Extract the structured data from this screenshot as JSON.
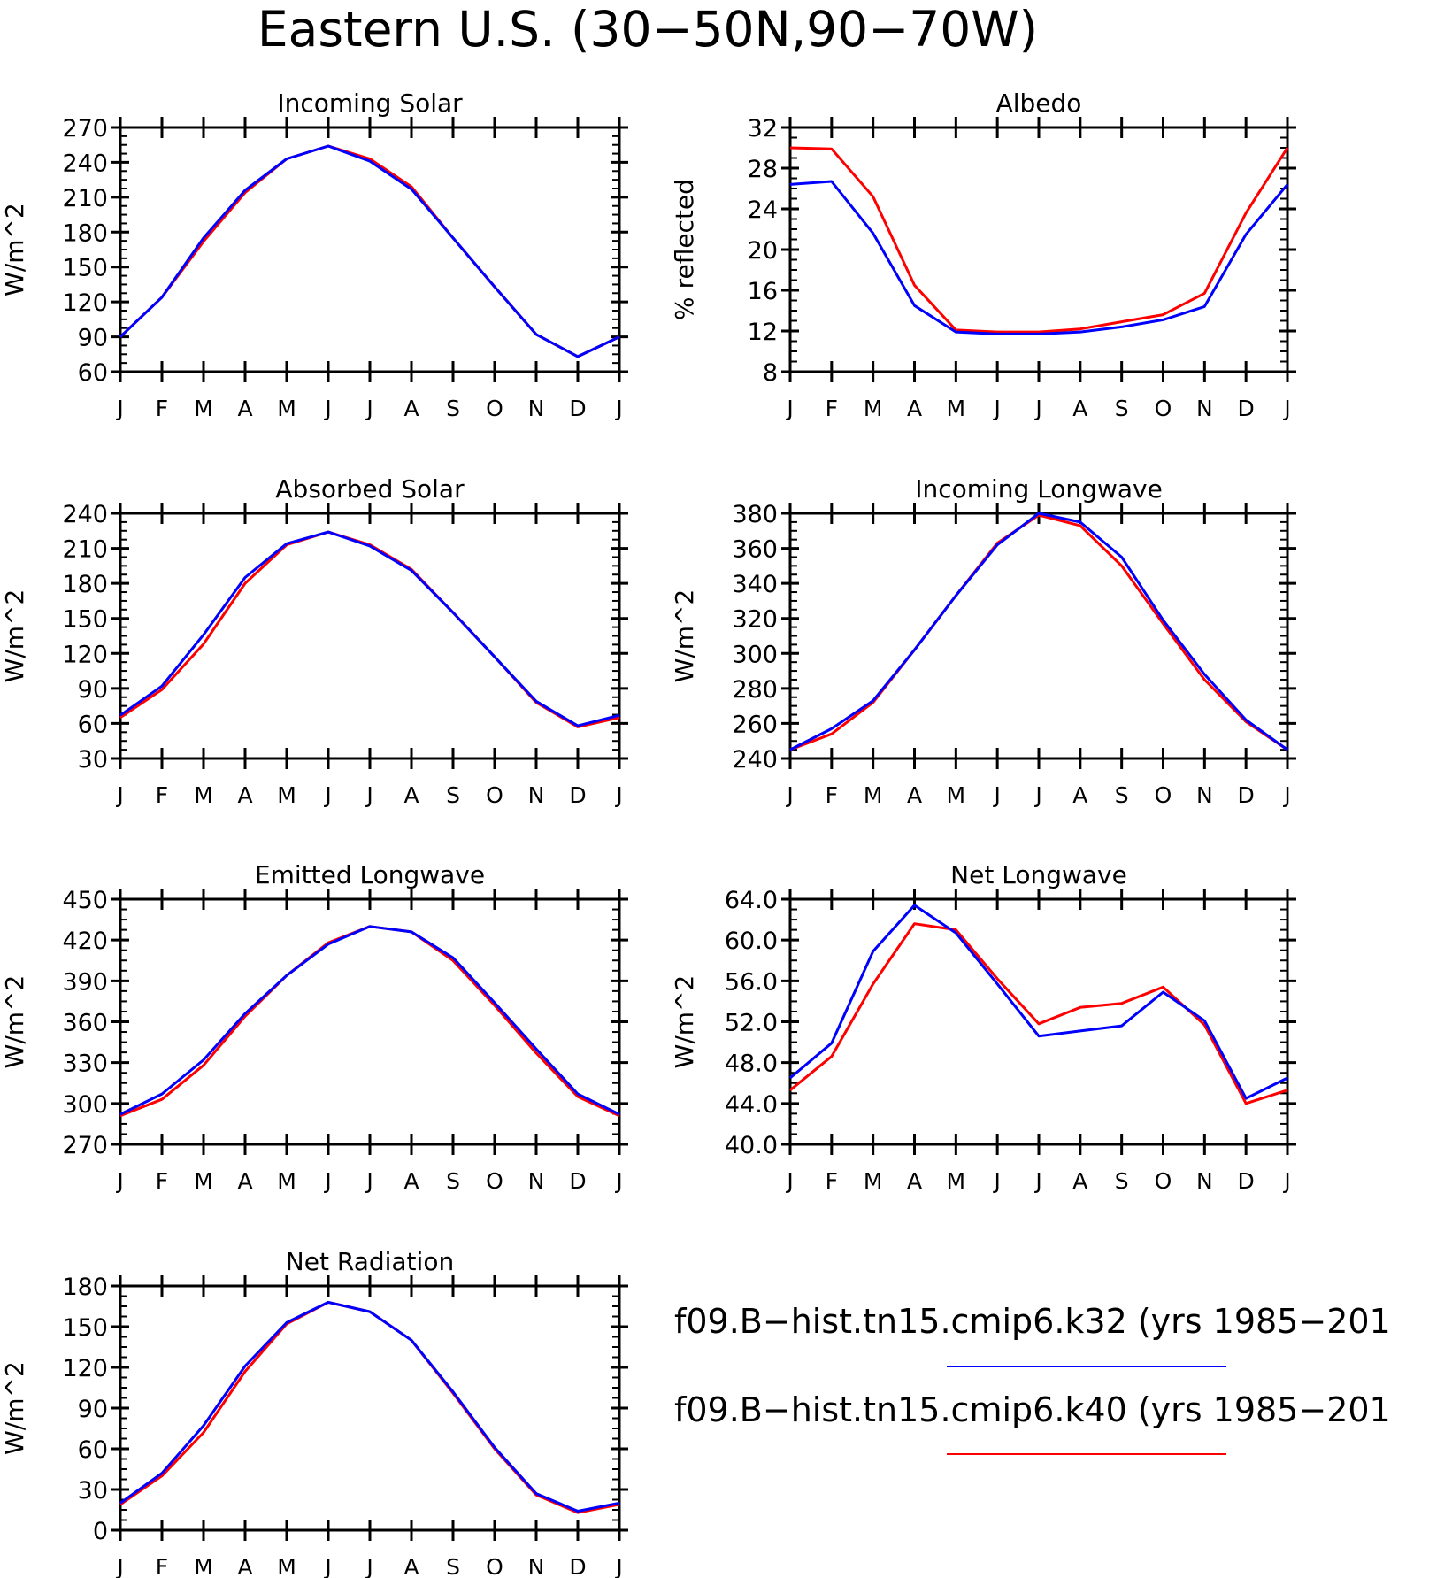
{
  "figure": {
    "title": "Eastern U.S. (30−50N,90−70W)"
  },
  "legend": {
    "entries": [
      {
        "label": "f09.B−hist.tn15.cmip6.k32 (yrs 1985−201",
        "color": "#0000ff"
      },
      {
        "label": "f09.B−hist.tn15.cmip6.k40 (yrs 1985−201",
        "color": "#ff0000"
      }
    ]
  },
  "chart_data": [
    {
      "type": "line",
      "title": "Incoming Solar",
      "ylabel": "W/m^2",
      "categories": [
        "J",
        "F",
        "M",
        "A",
        "M",
        "J",
        "J",
        "A",
        "S",
        "O",
        "N",
        "D",
        "J"
      ],
      "ylim": [
        60,
        270
      ],
      "yticks": [
        "60",
        "90",
        "120",
        "150",
        "180",
        "210",
        "240",
        "270"
      ],
      "series": [
        {
          "color": "#ff0000",
          "values": [
            90,
            124,
            172,
            214,
            243,
            254,
            243,
            219,
            175,
            133,
            92,
            73,
            90
          ]
        },
        {
          "color": "#0000ff",
          "values": [
            90,
            124,
            175,
            216,
            243,
            254,
            241,
            217,
            175,
            133,
            92,
            73,
            90
          ]
        }
      ]
    },
    {
      "type": "line",
      "title": "Albedo",
      "ylabel": "% reflected",
      "categories": [
        "J",
        "F",
        "M",
        "A",
        "M",
        "J",
        "J",
        "A",
        "S",
        "O",
        "N",
        "D",
        "J"
      ],
      "ylim": [
        8,
        32
      ],
      "yticks": [
        "8",
        "12",
        "16",
        "20",
        "24",
        "28",
        "32"
      ],
      "series": [
        {
          "color": "#ff0000",
          "values": [
            30.0,
            29.9,
            25.2,
            16.5,
            12.1,
            11.9,
            11.9,
            12.2,
            12.9,
            13.6,
            15.7,
            23.6,
            30.0
          ]
        },
        {
          "color": "#0000ff",
          "values": [
            26.4,
            26.7,
            21.6,
            14.5,
            11.9,
            11.7,
            11.7,
            11.9,
            12.4,
            13.1,
            14.4,
            21.5,
            26.4
          ]
        }
      ]
    },
    {
      "type": "line",
      "title": "Absorbed Solar",
      "ylabel": "W/m^2",
      "categories": [
        "J",
        "F",
        "M",
        "A",
        "M",
        "J",
        "J",
        "A",
        "S",
        "O",
        "N",
        "D",
        "J"
      ],
      "ylim": [
        30,
        240
      ],
      "yticks": [
        "30",
        "60",
        "90",
        "120",
        "150",
        "180",
        "210",
        "240"
      ],
      "series": [
        {
          "color": "#ff0000",
          "values": [
            65,
            89,
            128,
            180,
            213,
            224,
            213,
            192,
            155,
            117,
            78,
            57,
            65
          ]
        },
        {
          "color": "#0000ff",
          "values": [
            67,
            92,
            136,
            185,
            214,
            224,
            212,
            191,
            155,
            117,
            79,
            58,
            67
          ]
        }
      ]
    },
    {
      "type": "line",
      "title": "Incoming Longwave",
      "ylabel": "W/m^2",
      "categories": [
        "J",
        "F",
        "M",
        "A",
        "M",
        "J",
        "J",
        "A",
        "S",
        "O",
        "N",
        "D",
        "J"
      ],
      "ylim": [
        240,
        380
      ],
      "yticks": [
        "240",
        "260",
        "280",
        "300",
        "320",
        "340",
        "360",
        "380"
      ],
      "series": [
        {
          "color": "#ff0000",
          "values": [
            245,
            254,
            272,
            302,
            333,
            363,
            379,
            373,
            350,
            317,
            285,
            261,
            245
          ]
        },
        {
          "color": "#0000ff",
          "values": [
            245,
            257,
            273,
            302,
            333,
            362,
            380,
            375,
            355,
            319,
            288,
            262,
            245
          ]
        }
      ]
    },
    {
      "type": "line",
      "title": "Emitted Longwave",
      "ylabel": "W/m^2",
      "categories": [
        "J",
        "F",
        "M",
        "A",
        "M",
        "J",
        "J",
        "A",
        "S",
        "O",
        "N",
        "D",
        "J"
      ],
      "ylim": [
        270,
        450
      ],
      "yticks": [
        "270",
        "300",
        "330",
        "360",
        "390",
        "420",
        "450"
      ],
      "series": [
        {
          "color": "#ff0000",
          "values": [
            291,
            303,
            328,
            364,
            394,
            418,
            430,
            426,
            405,
            372,
            337,
            305,
            291
          ]
        },
        {
          "color": "#0000ff",
          "values": [
            292,
            307,
            332,
            366,
            394,
            417,
            430,
            426,
            407,
            374,
            340,
            307,
            292
          ]
        }
      ]
    },
    {
      "type": "line",
      "title": "Net Longwave",
      "ylabel": "W/m^2",
      "categories": [
        "J",
        "F",
        "M",
        "A",
        "M",
        "J",
        "J",
        "A",
        "S",
        "O",
        "N",
        "D",
        "J"
      ],
      "ylim": [
        40,
        64
      ],
      "yticks": [
        "40.0",
        "44.0",
        "48.0",
        "52.0",
        "56.0",
        "60.0",
        "64.0"
      ],
      "series": [
        {
          "color": "#ff0000",
          "values": [
            45.3,
            48.6,
            55.7,
            61.6,
            61.0,
            56.2,
            51.8,
            53.4,
            53.8,
            55.4,
            51.7,
            44.0,
            45.3
          ]
        },
        {
          "color": "#0000ff",
          "values": [
            46.5,
            49.9,
            58.9,
            63.4,
            60.7,
            55.7,
            50.6,
            51.1,
            51.6,
            54.9,
            52.1,
            44.5,
            46.5
          ]
        }
      ]
    },
    {
      "type": "line",
      "title": "Net Radiation",
      "ylabel": "W/m^2",
      "categories": [
        "J",
        "F",
        "M",
        "A",
        "M",
        "J",
        "J",
        "A",
        "S",
        "O",
        "N",
        "D",
        "J"
      ],
      "ylim": [
        0,
        180
      ],
      "yticks": [
        "0",
        "30",
        "60",
        "90",
        "120",
        "150",
        "180"
      ],
      "series": [
        {
          "color": "#ff0000",
          "values": [
            19,
            40,
            72,
            117,
            152,
            168,
            161,
            140,
            101,
            60,
            26,
            13,
            19
          ]
        },
        {
          "color": "#0000ff",
          "values": [
            20,
            42,
            77,
            121,
            153,
            168,
            161,
            140,
            102,
            61,
            27,
            14,
            20
          ]
        }
      ]
    }
  ]
}
